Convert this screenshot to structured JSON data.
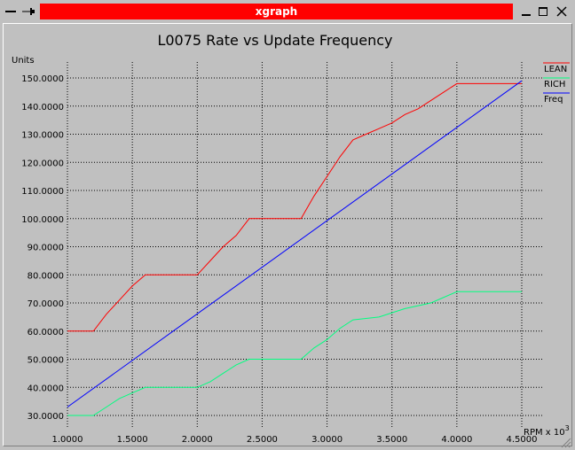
{
  "window": {
    "title": "xgraph",
    "controls": [
      "window-menu",
      "pin",
      "minimize",
      "maximize",
      "close"
    ]
  },
  "chart_data": {
    "type": "line",
    "title": "L0075 Rate vs Update Frequency",
    "ylabel": "Units",
    "xlabel": "RPM x 10",
    "xlabel_exponent": "3",
    "xlim": [
      1.0,
      4.5
    ],
    "ylim": [
      30.0,
      150.0
    ],
    "xticks": [
      "1.0000",
      "1.5000",
      "2.0000",
      "2.5000",
      "3.0000",
      "3.5000",
      "4.0000",
      "4.5000"
    ],
    "yticks": [
      "150.0000",
      "140.0000",
      "130.0000",
      "120.0000",
      "110.0000",
      "100.0000",
      "90.0000",
      "80.0000",
      "70.0000",
      "60.0000",
      "50.0000",
      "40.0000",
      "30.0000"
    ],
    "grid": true,
    "legend_position": "right",
    "series": [
      {
        "name": "LEAN",
        "color": "#ff0000",
        "points": [
          [
            1.0,
            60
          ],
          [
            1.2,
            60
          ],
          [
            1.3,
            66
          ],
          [
            1.4,
            71
          ],
          [
            1.5,
            76
          ],
          [
            1.6,
            80
          ],
          [
            2.0,
            80
          ],
          [
            2.1,
            85
          ],
          [
            2.2,
            90
          ],
          [
            2.3,
            94
          ],
          [
            2.4,
            100
          ],
          [
            2.8,
            100
          ],
          [
            2.9,
            108
          ],
          [
            3.0,
            115
          ],
          [
            3.1,
            122
          ],
          [
            3.2,
            128
          ],
          [
            3.3,
            130
          ],
          [
            3.4,
            132
          ],
          [
            3.5,
            134
          ],
          [
            3.6,
            137
          ],
          [
            3.7,
            139
          ],
          [
            3.8,
            142
          ],
          [
            3.9,
            145
          ],
          [
            4.0,
            148
          ],
          [
            4.5,
            148
          ]
        ]
      },
      {
        "name": "RICH",
        "color": "#00ff80",
        "points": [
          [
            1.0,
            30
          ],
          [
            1.2,
            30
          ],
          [
            1.3,
            33
          ],
          [
            1.4,
            36
          ],
          [
            1.5,
            38
          ],
          [
            1.6,
            40
          ],
          [
            2.0,
            40
          ],
          [
            2.1,
            42
          ],
          [
            2.2,
            45
          ],
          [
            2.3,
            48
          ],
          [
            2.4,
            50
          ],
          [
            2.8,
            50
          ],
          [
            2.9,
            54
          ],
          [
            3.0,
            57
          ],
          [
            3.1,
            61
          ],
          [
            3.2,
            64
          ],
          [
            3.4,
            65
          ],
          [
            3.6,
            68
          ],
          [
            3.8,
            70
          ],
          [
            4.0,
            74
          ],
          [
            4.5,
            74
          ]
        ]
      },
      {
        "name": "Freq",
        "color": "#0000ff",
        "points": [
          [
            1.0,
            33
          ],
          [
            4.5,
            149
          ]
        ]
      }
    ]
  }
}
